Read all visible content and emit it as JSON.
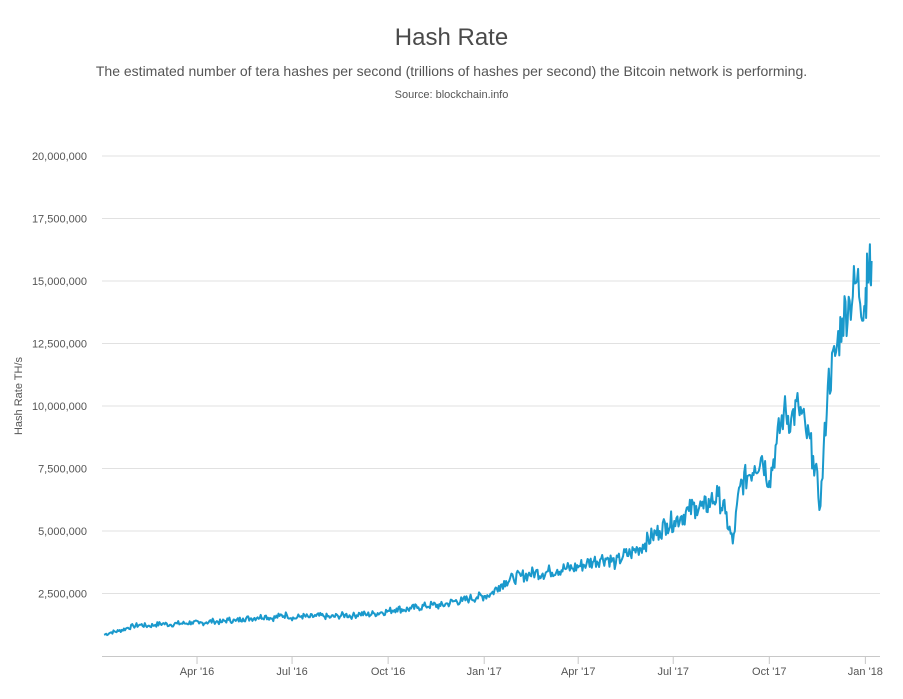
{
  "chart_data": {
    "type": "line",
    "title": "Hash Rate",
    "subtitle": "The estimated number of tera hashes per second (trillions of hashes per second) the Bitcoin network is performing.",
    "source": "Source: blockchain.info",
    "xlabel": "",
    "ylabel": "Hash Rate TH/s",
    "ylim": [
      0,
      20000000
    ],
    "yticks": [
      2500000,
      5000000,
      7500000,
      10000000,
      12500000,
      15000000,
      17500000,
      20000000
    ],
    "ytick_labels": [
      "2,500,000",
      "5,000,000",
      "7,500,000",
      "10,000,000",
      "12,500,000",
      "15,000,000",
      "17,500,000",
      "20,000,000"
    ],
    "xlim": [
      "2016-01-01",
      "2018-01-15"
    ],
    "xticks": [
      "2016-04-01",
      "2016-07-01",
      "2016-10-01",
      "2017-01-01",
      "2017-04-01",
      "2017-07-01",
      "2017-10-01",
      "2018-01-01"
    ],
    "xtick_labels": [
      "Apr '16",
      "Jul '16",
      "Oct '16",
      "Jan '17",
      "Apr '17",
      "Jul '17",
      "Oct '17",
      "Jan '18"
    ],
    "grid": true,
    "line_color": "#1a99cc",
    "series": [
      {
        "x": [
          "2016-01-03",
          "2016-01-10",
          "2016-01-17",
          "2016-01-24",
          "2016-01-31",
          "2016-02-07",
          "2016-02-14",
          "2016-02-21",
          "2016-02-28",
          "2016-03-06",
          "2016-03-13",
          "2016-03-20",
          "2016-03-27",
          "2016-04-03",
          "2016-04-10",
          "2016-04-17",
          "2016-04-24",
          "2016-05-01",
          "2016-05-08",
          "2016-05-15",
          "2016-05-22",
          "2016-05-29",
          "2016-06-05",
          "2016-06-12",
          "2016-06-19",
          "2016-06-26",
          "2016-07-03",
          "2016-07-10",
          "2016-07-17",
          "2016-07-24",
          "2016-07-31",
          "2016-08-07",
          "2016-08-14",
          "2016-08-21",
          "2016-08-28",
          "2016-09-04",
          "2016-09-11",
          "2016-09-18",
          "2016-09-25",
          "2016-10-02",
          "2016-10-09",
          "2016-10-16",
          "2016-10-23",
          "2016-10-30",
          "2016-11-06",
          "2016-11-13",
          "2016-11-20",
          "2016-11-27",
          "2016-12-04",
          "2016-12-11",
          "2016-12-18",
          "2016-12-25",
          "2017-01-01",
          "2017-01-08",
          "2017-01-15",
          "2017-01-22",
          "2017-01-29",
          "2017-02-05",
          "2017-02-12",
          "2017-02-19",
          "2017-02-26",
          "2017-03-05",
          "2017-03-12",
          "2017-03-19",
          "2017-03-26",
          "2017-04-02",
          "2017-04-09",
          "2017-04-16",
          "2017-04-23",
          "2017-04-30",
          "2017-05-07",
          "2017-05-14",
          "2017-05-21",
          "2017-05-28",
          "2017-06-04",
          "2017-06-11",
          "2017-06-18",
          "2017-06-25",
          "2017-07-02",
          "2017-07-09",
          "2017-07-16",
          "2017-07-23",
          "2017-07-30",
          "2017-08-06",
          "2017-08-13",
          "2017-08-20",
          "2017-08-27",
          "2017-09-03",
          "2017-09-10",
          "2017-09-17",
          "2017-09-24",
          "2017-10-01",
          "2017-10-08",
          "2017-10-15",
          "2017-10-22",
          "2017-10-29",
          "2017-11-05",
          "2017-11-12",
          "2017-11-19",
          "2017-11-26",
          "2017-12-03",
          "2017-12-10",
          "2017-12-17",
          "2017-12-24",
          "2017-12-31",
          "2018-01-03",
          "2018-01-07"
        ],
        "values": [
          850000,
          950000,
          1000000,
          1100000,
          1200000,
          1250000,
          1200000,
          1250000,
          1300000,
          1250000,
          1300000,
          1300000,
          1350000,
          1300000,
          1350000,
          1400000,
          1350000,
          1450000,
          1400000,
          1500000,
          1500000,
          1550000,
          1600000,
          1500000,
          1600000,
          1650000,
          1500000,
          1600000,
          1550000,
          1600000,
          1600000,
          1550000,
          1600000,
          1650000,
          1600000,
          1700000,
          1650000,
          1700000,
          1750000,
          1800000,
          1900000,
          1850000,
          1900000,
          1950000,
          2000000,
          2050000,
          2000000,
          2100000,
          2200000,
          2200000,
          2300000,
          2350000,
          2400000,
          2500000,
          2800000,
          3000000,
          3100000,
          3200000,
          3250000,
          3350000,
          3300000,
          3400000,
          3450000,
          3500000,
          3500000,
          3600000,
          3700000,
          3800000,
          3900000,
          3900000,
          3700000,
          4000000,
          4100000,
          4300000,
          4500000,
          4800000,
          5000000,
          5300000,
          5400000,
          5600000,
          5800000,
          6000000,
          5900000,
          6200000,
          6400000,
          5700000,
          4500000,
          6800000,
          7200000,
          7600000,
          8000000,
          7000000,
          8500000,
          9800000,
          9500000,
          10000000,
          9000000,
          8000000,
          6000000,
          10800000,
          12000000,
          13500000,
          14200000,
          15000000,
          14000000,
          15200000,
          15800000
        ]
      }
    ]
  }
}
